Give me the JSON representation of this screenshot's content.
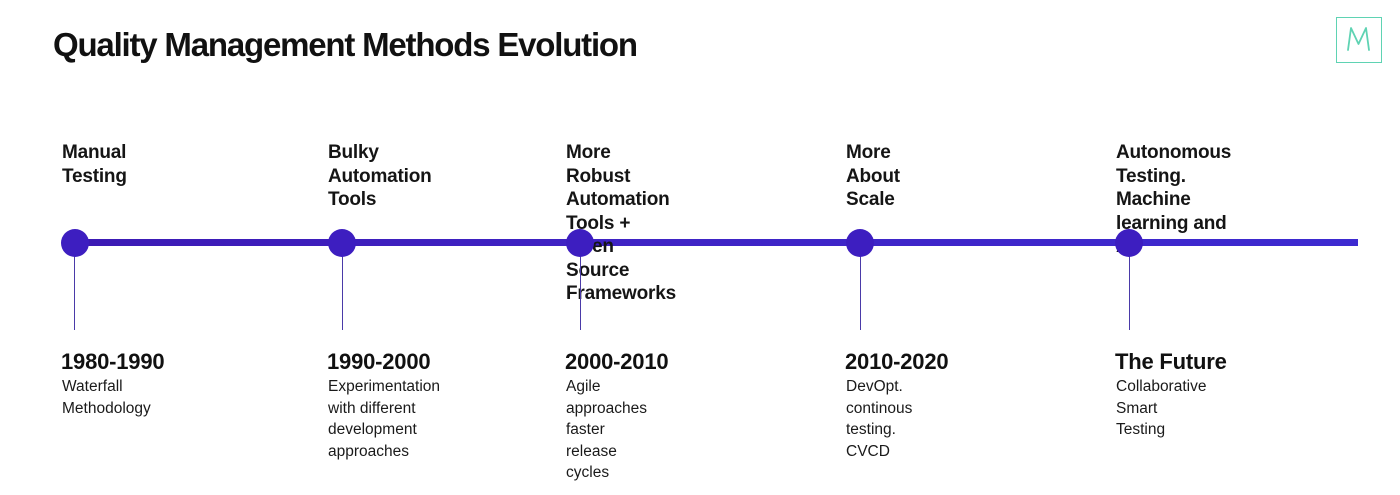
{
  "title": "Quality Management Methods Evolution",
  "logo": {
    "letter": "M",
    "color": "#5fd3b3"
  },
  "colors": {
    "track": "#3f23c4",
    "dot": "#3d1ec0"
  },
  "milestones": [
    {
      "label": "Manual Testing",
      "period": "1980-1990",
      "description": "Waterfall\nMethodology"
    },
    {
      "label": "Bulky Automation\nTools",
      "period": "1990-2000",
      "description": "Experimentation\nwith different\ndevelopment\napproaches"
    },
    {
      "label": "More Robust Automation\nTools + Open Source\nFrameworks",
      "period": "2000-2010",
      "description": "Agile approaches\nfaster release\ncycles"
    },
    {
      "label": "More About\nScale",
      "period": "2010-2020",
      "description": "DevOpt.\ncontinous\ntesting. CVCD"
    },
    {
      "label": "Autonomous Testing.\nMachine learning and AI",
      "period": "The Future",
      "description": "Collaborative\nSmart Testing"
    }
  ]
}
